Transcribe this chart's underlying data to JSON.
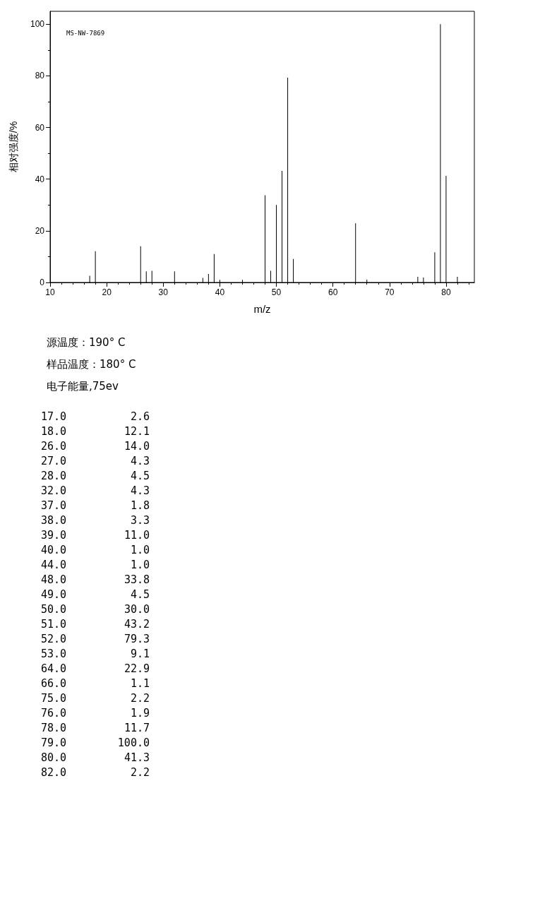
{
  "chart_data": [
    {
      "type": "bar",
      "xlabel": "m/z",
      "ylabel": "相对强度/%",
      "annotations": [
        "MS-NW-7869",
        "源温度：190° C",
        "样品温度：180° C",
        "电子能量,75ev"
      ],
      "x": [
        17,
        18,
        26,
        27,
        28,
        32,
        37,
        38,
        39,
        40,
        44,
        48,
        49,
        50,
        51,
        52,
        53,
        64,
        66,
        75,
        76,
        78,
        79,
        80,
        82
      ],
      "values": [
        2.6,
        12.1,
        14.0,
        4.3,
        4.5,
        4.3,
        1.8,
        3.3,
        11.0,
        1.0,
        1.0,
        33.8,
        4.5,
        30.0,
        43.2,
        79.3,
        9.1,
        22.9,
        1.1,
        2.2,
        1.9,
        11.7,
        100.0,
        41.3,
        2.2
      ],
      "color": "#000000",
      "xlim": [
        10,
        85
      ],
      "xticks": [
        10,
        20,
        30,
        40,
        50,
        60,
        70,
        80
      ],
      "ylim": [
        0,
        105
      ],
      "yticks": [
        0,
        20,
        40,
        60,
        80,
        100
      ],
      "grid": false
    },
    {
      "type": "other",
      "categories": [
        "17.0",
        "18.0",
        "26.0",
        "27.0",
        "28.0",
        "32.0",
        "37.0",
        "38.0",
        "39.0",
        "40.0",
        "44.0",
        "48.0",
        "49.0",
        "50.0",
        "51.0",
        "52.0",
        "53.0",
        "64.0",
        "66.0",
        "75.0",
        "76.0",
        "78.0",
        "79.0",
        "80.0",
        "82.0"
      ],
      "value_labels": [
        "2.6",
        "12.1",
        "14.0",
        "4.3",
        "4.5",
        "4.3",
        "1.8",
        "3.3",
        "11.0",
        "1.0",
        "1.0",
        "33.8",
        "4.5",
        "30.0",
        "43.2",
        "79.3",
        "9.1",
        "22.9",
        "1.1",
        "2.2",
        "1.9",
        "11.7",
        "100.0",
        "41.3",
        "2.2"
      ]
    }
  ]
}
